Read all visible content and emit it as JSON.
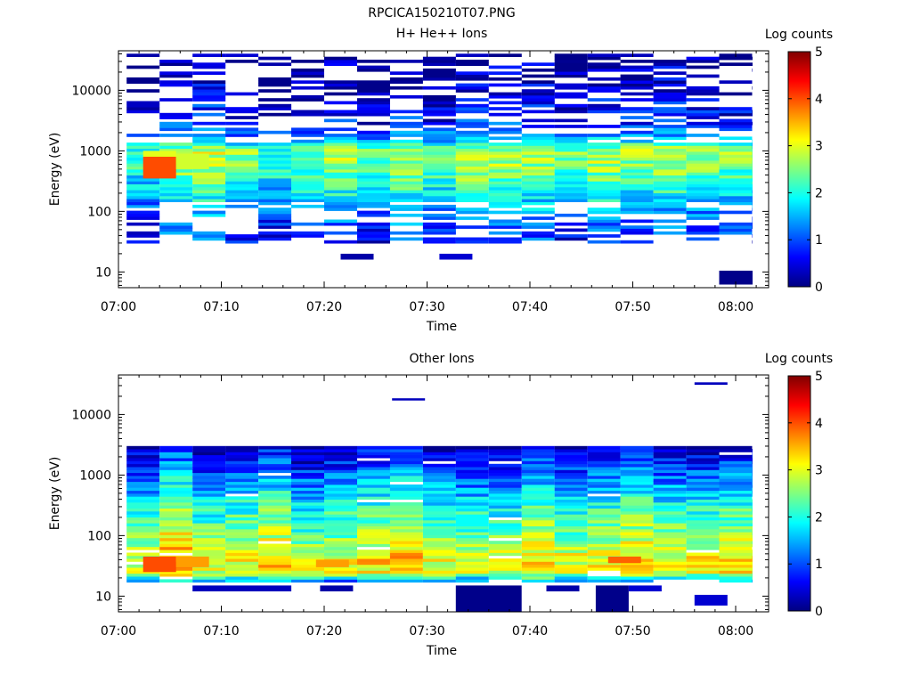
{
  "figure": {
    "title": "RPCICA150210T07.PNG"
  },
  "chart_data": [
    {
      "type": "heatmap",
      "title": "H+ He++ Ions",
      "xlabel": "Time",
      "ylabel": "Energy (eV)",
      "yscale": "log",
      "ylim": [
        5.5,
        45000
      ],
      "x_range_minutes": [
        0,
        63
      ],
      "x_ticks": [
        {
          "t": 0,
          "label": "07:00"
        },
        {
          "t": 10,
          "label": "07:10"
        },
        {
          "t": 20,
          "label": "07:20"
        },
        {
          "t": 30,
          "label": "07:30"
        },
        {
          "t": 40,
          "label": "07:40"
        },
        {
          "t": 50,
          "label": "07:50"
        },
        {
          "t": 60,
          "label": "08:00"
        }
      ],
      "y_ticks": [
        {
          "v": 10,
          "label": "10"
        },
        {
          "v": 100,
          "label": "100"
        },
        {
          "v": 1000,
          "label": "1000"
        },
        {
          "v": 10000,
          "label": "10000"
        }
      ],
      "colorbar": {
        "label": "Log counts",
        "range": [
          0,
          5
        ],
        "ticks": [
          "0",
          "1",
          "2",
          "3",
          "4",
          "5"
        ]
      },
      "time_bins_minutes": [
        0.8,
        4.0,
        7.2,
        10.4,
        13.6,
        16.8,
        20.0,
        23.2,
        26.4,
        29.6,
        32.8,
        36.0,
        39.2,
        42.4,
        45.6,
        48.8,
        52.0,
        55.2,
        58.4,
        61.6
      ],
      "bin_width_minutes": 3.2,
      "profile": [
        {
          "e": 10,
          "v": -1
        },
        {
          "e": 20,
          "v": 0.3
        },
        {
          "e": 40,
          "v": 0.9
        },
        {
          "e": 70,
          "v": 1.1
        },
        {
          "e": 150,
          "v": 1.6
        },
        {
          "e": 300,
          "v": 2.1
        },
        {
          "e": 600,
          "v": 2.5
        },
        {
          "e": 1000,
          "v": 2.6
        },
        {
          "e": 1600,
          "v": 1.5
        },
        {
          "e": 3000,
          "v": 0.7
        },
        {
          "e": 10000,
          "v": 0.3
        },
        {
          "e": 40000,
          "v": 0.1
        }
      ],
      "presence": [
        {
          "from": 30,
          "to": 40000,
          "p": 0.55
        },
        {
          "from": 150,
          "to": 1300,
          "p": 1.0
        }
      ],
      "extra_blocks": [
        {
          "t": 2.4,
          "w": 3.2,
          "e0": 350,
          "e1": 800,
          "v": 4.0
        },
        {
          "t": 2.4,
          "w": 3.2,
          "e0": 800,
          "e1": 1000,
          "v": 3.0
        },
        {
          "t": 5.6,
          "w": 3.2,
          "e0": 500,
          "e1": 900,
          "v": 2.9
        },
        {
          "t": 58.4,
          "w": 6.4,
          "e0": 6.2,
          "e1": 10.5,
          "v": 0.05
        },
        {
          "t": 21.6,
          "w": 3.2,
          "e0": 16,
          "e1": 20,
          "v": 0.2
        },
        {
          "t": 31.2,
          "w": 3.2,
          "e0": 16,
          "e1": 20,
          "v": 0.4
        }
      ],
      "seed": 7
    },
    {
      "type": "heatmap",
      "title": "Other Ions",
      "xlabel": "Time",
      "ylabel": "Energy (eV)",
      "yscale": "log",
      "ylim": [
        5.5,
        45000
      ],
      "x_range_minutes": [
        0,
        63
      ],
      "x_ticks": [
        {
          "t": 0,
          "label": "07:00"
        },
        {
          "t": 10,
          "label": "07:10"
        },
        {
          "t": 20,
          "label": "07:20"
        },
        {
          "t": 30,
          "label": "07:30"
        },
        {
          "t": 40,
          "label": "07:40"
        },
        {
          "t": 50,
          "label": "07:50"
        },
        {
          "t": 60,
          "label": "08:00"
        }
      ],
      "y_ticks": [
        {
          "v": 10,
          "label": "10"
        },
        {
          "v": 100,
          "label": "100"
        },
        {
          "v": 1000,
          "label": "1000"
        },
        {
          "v": 10000,
          "label": "10000"
        }
      ],
      "colorbar": {
        "label": "Log counts",
        "range": [
          0,
          5
        ],
        "ticks": [
          "0",
          "1",
          "2",
          "3",
          "4",
          "5"
        ]
      },
      "time_bins_minutes": [
        0.8,
        4.0,
        7.2,
        10.4,
        13.6,
        16.8,
        20.0,
        23.2,
        26.4,
        29.6,
        32.8,
        36.0,
        39.2,
        42.4,
        45.6,
        48.8,
        52.0,
        55.2,
        58.4,
        61.6
      ],
      "bin_width_minutes": 3.2,
      "profile": [
        {
          "e": 15,
          "v": -1
        },
        {
          "e": 18,
          "v": 1.6
        },
        {
          "e": 25,
          "v": 3.2
        },
        {
          "e": 40,
          "v": 3.3
        },
        {
          "e": 100,
          "v": 2.7
        },
        {
          "e": 300,
          "v": 2.2
        },
        {
          "e": 700,
          "v": 1.6
        },
        {
          "e": 1500,
          "v": 1.0
        },
        {
          "e": 3000,
          "v": 0.5
        }
      ],
      "presence": [
        {
          "from": 17,
          "to": 3000,
          "p": 0.97
        }
      ],
      "extra_blocks": [
        {
          "t": 7.2,
          "w": 9.6,
          "e0": 12,
          "e1": 15,
          "v": 0.3
        },
        {
          "t": 19.6,
          "w": 3.2,
          "e0": 12,
          "e1": 15,
          "v": 0.2
        },
        {
          "t": 32.8,
          "w": 6.4,
          "e0": 5.6,
          "e1": 15,
          "v": 0.05
        },
        {
          "t": 41.6,
          "w": 3.2,
          "e0": 12,
          "e1": 15,
          "v": 0.2
        },
        {
          "t": 46.4,
          "w": 3.2,
          "e0": 5.6,
          "e1": 15,
          "v": 0.05
        },
        {
          "t": 49.6,
          "w": 3.2,
          "e0": 12,
          "e1": 15,
          "v": 0.4
        },
        {
          "t": 56.0,
          "w": 3.2,
          "e0": 7,
          "e1": 10.5,
          "v": 0.4
        },
        {
          "t": 26.6,
          "w": 3.2,
          "e0": 17000,
          "e1": 18500,
          "v": 0.3
        },
        {
          "t": 56.0,
          "w": 3.2,
          "e0": 31000,
          "e1": 34000,
          "v": 0.3
        },
        {
          "t": 2.4,
          "w": 3.2,
          "e0": 25,
          "e1": 45,
          "v": 4.0
        },
        {
          "t": 5.6,
          "w": 3.2,
          "e0": 30,
          "e1": 45,
          "v": 3.6
        },
        {
          "t": 19.2,
          "w": 3.2,
          "e0": 30,
          "e1": 40,
          "v": 3.6
        },
        {
          "t": 47.6,
          "w": 3.2,
          "e0": 35,
          "e1": 45,
          "v": 3.9
        }
      ],
      "seed": 23
    }
  ]
}
